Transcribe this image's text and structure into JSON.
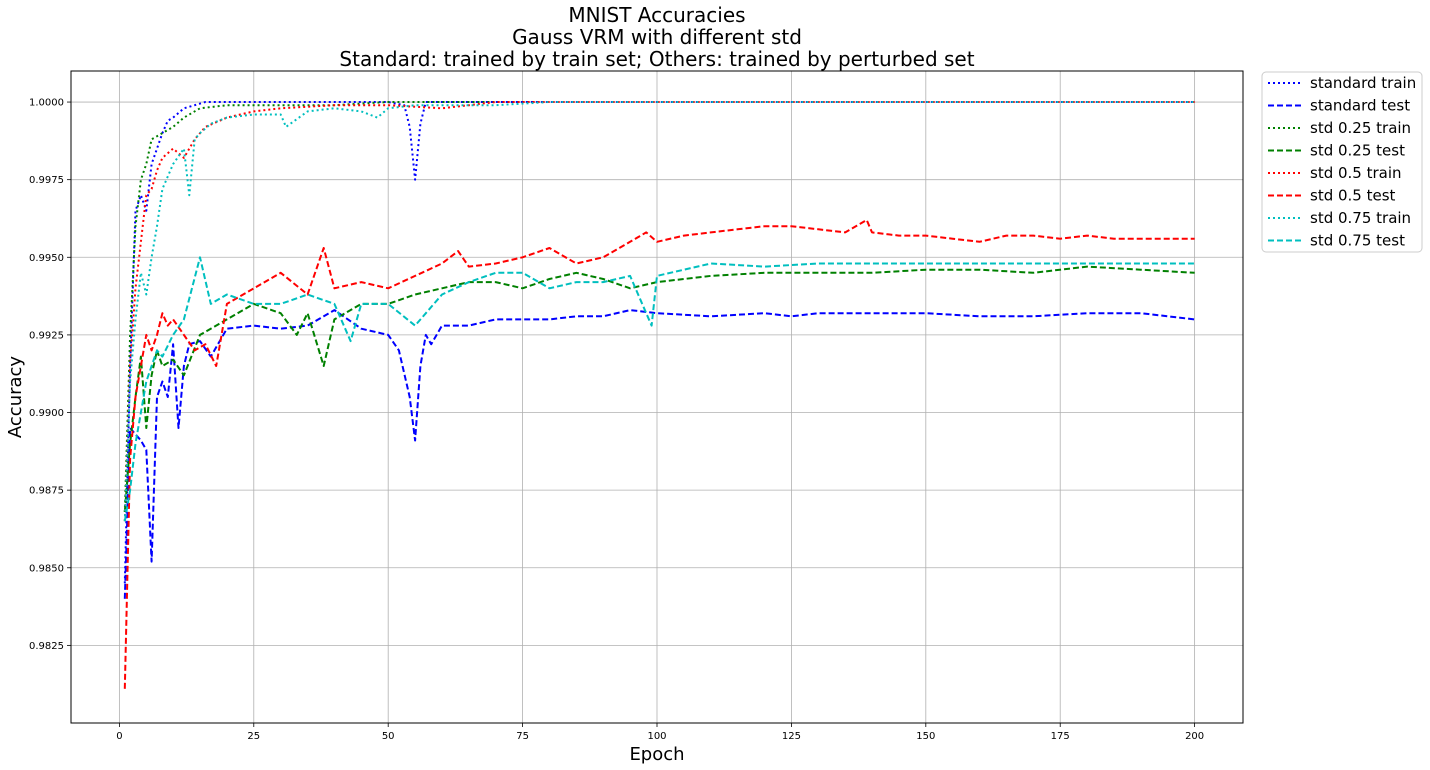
{
  "chart_data": {
    "type": "line",
    "title_lines": [
      "MNIST Accuracies",
      "Gauss VRM with different std",
      "Standard: trained by train set; Others: trained by perturbed set"
    ],
    "xlabel": "Epoch",
    "ylabel": "Accuracy",
    "xlim": [
      -9,
      209
    ],
    "ylim": [
      0.98,
      1.001
    ],
    "xticks": [
      0,
      25,
      50,
      75,
      100,
      125,
      150,
      175,
      200
    ],
    "xtick_labels": [
      "0",
      "25",
      "50",
      "75",
      "100",
      "125",
      "150",
      "175",
      "200"
    ],
    "yticks": [
      0.9825,
      0.985,
      0.9875,
      0.99,
      0.9925,
      0.995,
      0.9975,
      1.0
    ],
    "ytick_labels": [
      "0.9825",
      "0.9850",
      "0.9875",
      "0.9900",
      "0.9925",
      "0.9950",
      "0.9975",
      "1.0000"
    ],
    "grid": true,
    "legend_position": "outside-top-right",
    "series": [
      {
        "name": "standard train",
        "color": "#0000ff",
        "style": "dotted",
        "x": [
          1,
          2,
          3,
          4,
          5,
          6,
          7,
          8,
          9,
          10,
          12,
          14,
          16,
          20,
          25,
          30,
          40,
          50,
          53,
          54,
          55,
          56,
          57,
          60,
          80,
          100,
          150,
          200
        ],
        "y": [
          0.9845,
          0.9915,
          0.9965,
          0.997,
          0.9965,
          0.998,
          0.9985,
          0.999,
          0.9994,
          0.9995,
          0.9998,
          0.9999,
          1.0,
          1.0,
          1.0,
          1.0,
          1.0,
          1.0,
          0.9999,
          0.9992,
          0.9975,
          0.9993,
          1.0,
          1.0,
          1.0,
          1.0,
          1.0,
          1.0
        ]
      },
      {
        "name": "standard test",
        "color": "#0000ff",
        "style": "dashed",
        "x": [
          1,
          2,
          3,
          4,
          5,
          6,
          7,
          8,
          9,
          10,
          11,
          12,
          13,
          15,
          17,
          20,
          25,
          30,
          35,
          40,
          45,
          50,
          52,
          54,
          55,
          56,
          57,
          58,
          60,
          65,
          70,
          75,
          80,
          85,
          90,
          95,
          100,
          110,
          120,
          125,
          130,
          140,
          150,
          160,
          170,
          180,
          190,
          200
        ],
        "y": [
          0.984,
          0.9895,
          0.9893,
          0.9891,
          0.9888,
          0.9852,
          0.9905,
          0.991,
          0.9905,
          0.9922,
          0.9895,
          0.9915,
          0.9922,
          0.9923,
          0.9918,
          0.9927,
          0.9928,
          0.9927,
          0.9928,
          0.9933,
          0.9927,
          0.9925,
          0.992,
          0.9905,
          0.9891,
          0.9915,
          0.9925,
          0.9922,
          0.9928,
          0.9928,
          0.993,
          0.993,
          0.993,
          0.9931,
          0.9931,
          0.9933,
          0.9932,
          0.9931,
          0.9932,
          0.9931,
          0.9932,
          0.9932,
          0.9932,
          0.9931,
          0.9931,
          0.9932,
          0.9932,
          0.993
        ]
      },
      {
        "name": "std 0.25 train",
        "color": "#008000",
        "style": "dotted",
        "x": [
          1,
          2,
          3,
          4,
          5,
          6,
          7,
          8,
          10,
          12,
          15,
          20,
          25,
          30,
          40,
          50,
          60,
          70,
          80,
          90,
          100,
          150,
          200
        ],
        "y": [
          0.9868,
          0.9925,
          0.996,
          0.9975,
          0.998,
          0.9988,
          0.9989,
          0.999,
          0.9992,
          0.9995,
          0.9998,
          0.9999,
          0.9999,
          0.9999,
          0.9999,
          1.0,
          1.0,
          1.0,
          1.0,
          1.0,
          1.0,
          1.0,
          1.0
        ]
      },
      {
        "name": "std 0.25 test",
        "color": "#008000",
        "style": "dashed",
        "x": [
          1,
          2,
          3,
          4,
          5,
          6,
          7,
          8,
          10,
          12,
          15,
          20,
          25,
          30,
          33,
          35,
          38,
          40,
          45,
          50,
          55,
          60,
          65,
          70,
          75,
          80,
          85,
          90,
          95,
          100,
          110,
          120,
          130,
          140,
          150,
          160,
          170,
          180,
          190,
          200
        ],
        "y": [
          0.9868,
          0.989,
          0.9905,
          0.9918,
          0.9895,
          0.9912,
          0.992,
          0.9915,
          0.9917,
          0.9912,
          0.9925,
          0.993,
          0.9935,
          0.9932,
          0.9925,
          0.9932,
          0.9915,
          0.993,
          0.9935,
          0.9935,
          0.9938,
          0.994,
          0.9942,
          0.9942,
          0.994,
          0.9943,
          0.9945,
          0.9943,
          0.994,
          0.9942,
          0.9944,
          0.9945,
          0.9945,
          0.9945,
          0.9946,
          0.9946,
          0.9945,
          0.9947,
          0.9946,
          0.9945
        ]
      },
      {
        "name": "std 0.5 train",
        "color": "#ff0000",
        "style": "dotted",
        "x": [
          1,
          2,
          3,
          4,
          5,
          6,
          7,
          8,
          10,
          12,
          14,
          16,
          20,
          25,
          30,
          40,
          50,
          60,
          65,
          70,
          80,
          90,
          100,
          150,
          200
        ],
        "y": [
          0.9865,
          0.9915,
          0.994,
          0.9955,
          0.997,
          0.9972,
          0.9978,
          0.9982,
          0.9985,
          0.9982,
          0.9988,
          0.9992,
          0.9995,
          0.9997,
          0.9998,
          0.9999,
          0.9999,
          0.9998,
          0.9999,
          1.0,
          1.0,
          1.0,
          1.0,
          1.0,
          1.0
        ]
      },
      {
        "name": "std 0.5 test",
        "color": "#ff0000",
        "style": "dashed",
        "x": [
          1,
          2,
          3,
          4,
          5,
          6,
          7,
          8,
          9,
          10,
          12,
          14,
          16,
          18,
          20,
          25,
          30,
          35,
          38,
          40,
          45,
          50,
          55,
          60,
          63,
          65,
          70,
          75,
          80,
          85,
          90,
          95,
          98,
          100,
          105,
          110,
          115,
          120,
          125,
          130,
          135,
          139,
          140,
          145,
          150,
          155,
          160,
          165,
          170,
          175,
          180,
          185,
          190,
          195,
          200
        ],
        "y": [
          0.9811,
          0.9885,
          0.9905,
          0.9915,
          0.9925,
          0.992,
          0.9925,
          0.9932,
          0.9928,
          0.993,
          0.9925,
          0.992,
          0.9922,
          0.9915,
          0.9935,
          0.994,
          0.9945,
          0.9938,
          0.9953,
          0.994,
          0.9942,
          0.994,
          0.9944,
          0.9948,
          0.9952,
          0.9947,
          0.9948,
          0.995,
          0.9953,
          0.9948,
          0.995,
          0.9955,
          0.9958,
          0.9955,
          0.9957,
          0.9958,
          0.9959,
          0.996,
          0.996,
          0.9959,
          0.9958,
          0.9962,
          0.9958,
          0.9957,
          0.9957,
          0.9956,
          0.9955,
          0.9957,
          0.9957,
          0.9956,
          0.9957,
          0.9956,
          0.9956,
          0.9956,
          0.9956
        ]
      },
      {
        "name": "std 0.75 train",
        "color": "#00bfbf",
        "style": "dotted",
        "x": [
          1,
          2,
          3,
          4,
          5,
          6,
          7,
          8,
          10,
          12,
          13,
          14,
          15,
          17,
          20,
          25,
          30,
          31,
          35,
          40,
          45,
          48,
          50,
          55,
          60,
          70,
          80,
          90,
          100,
          150,
          200
        ],
        "y": [
          0.9865,
          0.991,
          0.993,
          0.9945,
          0.9938,
          0.995,
          0.996,
          0.9972,
          0.998,
          0.9985,
          0.997,
          0.9988,
          0.999,
          0.9993,
          0.9995,
          0.9996,
          0.9996,
          0.9992,
          0.9997,
          0.9998,
          0.9997,
          0.9995,
          0.9998,
          0.9999,
          0.9999,
          0.9999,
          1.0,
          1.0,
          1.0,
          1.0,
          1.0
        ]
      },
      {
        "name": "std 0.75 test",
        "color": "#00bfbf",
        "style": "dashed",
        "x": [
          1,
          2,
          3,
          4,
          5,
          6,
          7,
          8,
          10,
          12,
          15,
          17,
          20,
          25,
          30,
          35,
          40,
          43,
          45,
          50,
          55,
          60,
          65,
          70,
          75,
          80,
          85,
          90,
          95,
          99,
          100,
          105,
          110,
          120,
          130,
          140,
          150,
          160,
          170,
          180,
          190,
          200
        ],
        "y": [
          0.9865,
          0.9875,
          0.989,
          0.99,
          0.991,
          0.9915,
          0.992,
          0.9918,
          0.9925,
          0.993,
          0.995,
          0.9935,
          0.9938,
          0.9935,
          0.9935,
          0.9938,
          0.9935,
          0.9923,
          0.9935,
          0.9935,
          0.9928,
          0.9938,
          0.9942,
          0.9945,
          0.9945,
          0.994,
          0.9942,
          0.9942,
          0.9944,
          0.9928,
          0.9944,
          0.9946,
          0.9948,
          0.9947,
          0.9948,
          0.9948,
          0.9948,
          0.9948,
          0.9948,
          0.9948,
          0.9948,
          0.9948
        ]
      }
    ]
  }
}
